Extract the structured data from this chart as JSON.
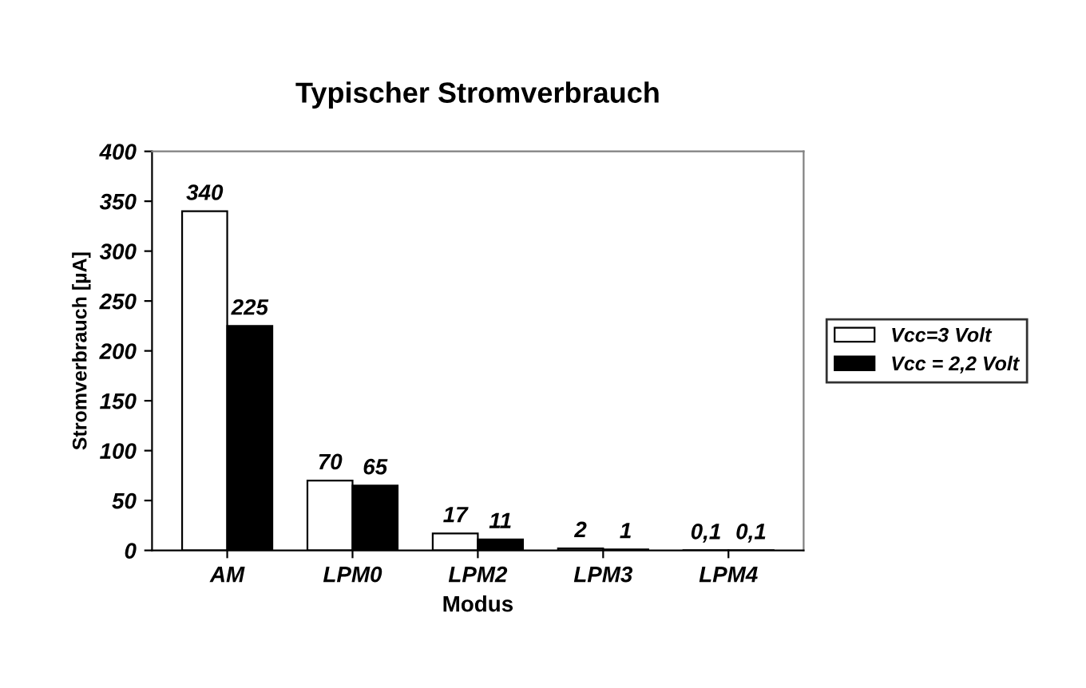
{
  "chart_data": {
    "type": "bar",
    "title": "Typischer Stromverbrauch",
    "xlabel": "Modus",
    "ylabel": "Stromverbrauch [µA]",
    "categories": [
      "AM",
      "LPM0",
      "LPM2",
      "LPM3",
      "LPM4"
    ],
    "series": [
      {
        "name": "Vcc=3 Volt",
        "color": "#ffffff",
        "values": [
          340,
          70,
          17,
          2,
          0.1
        ],
        "value_labels": [
          "340",
          "70",
          "17",
          "2",
          "0,1"
        ]
      },
      {
        "name": "Vcc = 2,2 Volt",
        "color": "#000000",
        "values": [
          225,
          65,
          11,
          1,
          0.1
        ],
        "value_labels": [
          "225",
          "65",
          "11",
          "1",
          "0,1"
        ]
      }
    ],
    "ylim": [
      0,
      400
    ],
    "yticks": [
      0,
      50,
      100,
      150,
      200,
      250,
      300,
      350,
      400
    ],
    "grid": false,
    "legend": "right"
  }
}
